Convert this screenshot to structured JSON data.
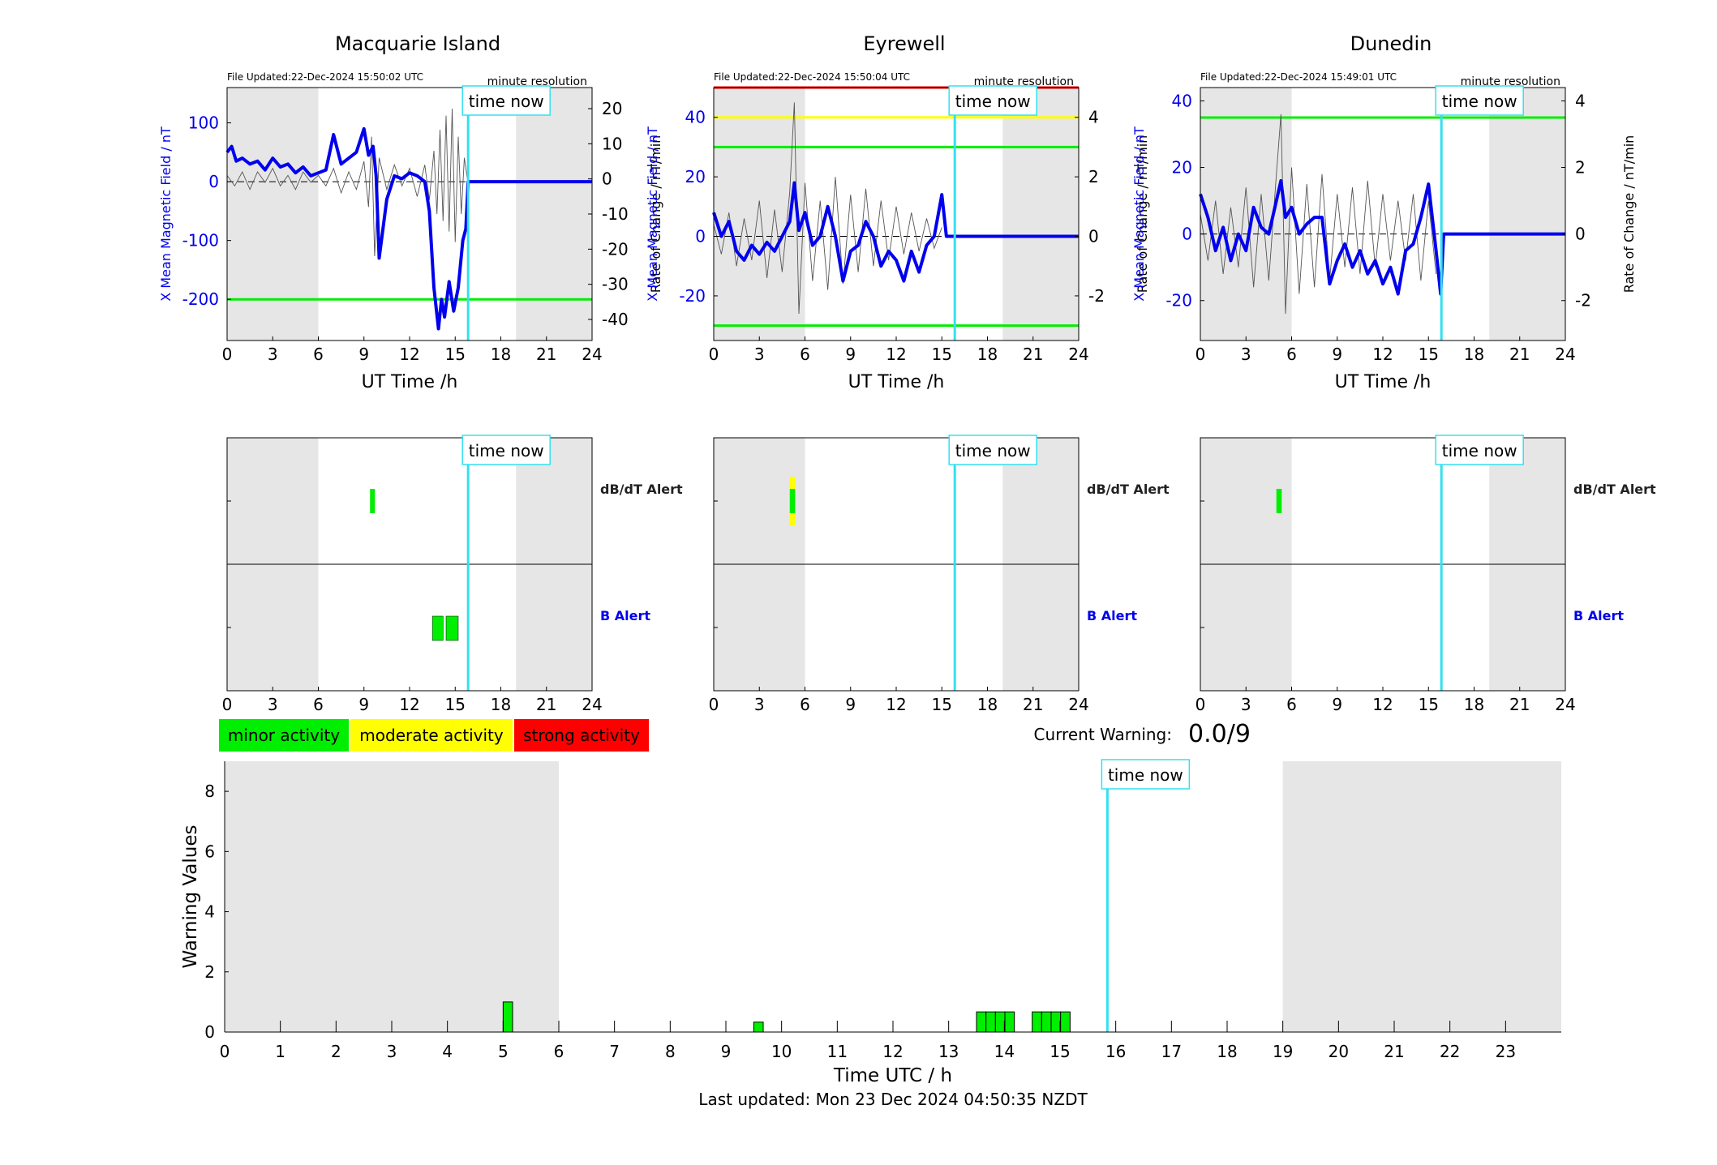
{
  "stations": [
    {
      "title": "Macquarie Island",
      "file_updated": "File Updated:22-Dec-2024 15:50:02 UTC",
      "resolution": "minute resolution",
      "left_ylabel": "X Mean Magnetic Field / nT",
      "right_ylabel": "Rate of Change / nT/min",
      "xlabel": "UT Time /h",
      "time_now_label": "time now"
    },
    {
      "title": "Eyrewell",
      "file_updated": "File Updated:22-Dec-2024 15:50:04 UTC",
      "resolution": "minute resolution",
      "left_ylabel": "X Mean Magnetic Field / nT",
      "right_ylabel": "Rate of Change / nT/min",
      "xlabel": "UT Time /h",
      "time_now_label": "time now"
    },
    {
      "title": "Dunedin",
      "file_updated": "File Updated:22-Dec-2024 15:49:01 UTC",
      "resolution": "minute resolution",
      "left_ylabel": "X Mean Magnetic Field / nT",
      "right_ylabel": "Rate of Change / nT/min",
      "xlabel": "UT Time /h",
      "time_now_label": "time now"
    }
  ],
  "alert_labels": {
    "dbdt": "dB/dT Alert",
    "b": "B Alert"
  },
  "legend": {
    "minor": "minor activity",
    "moderate": "moderate activity",
    "strong": "strong activity"
  },
  "current_warning": {
    "label": "Current Warning:",
    "value": "0.0/9"
  },
  "warning_chart": {
    "ylabel": "Warning Values",
    "xlabel": "Time UTC / h",
    "time_now_label": "time now"
  },
  "last_updated": "Last updated: Mon 23 Dec 2024 04:50:35 NZDT",
  "colors": {
    "field": "#0000ee",
    "rate": "#555555",
    "time_now": "#33e0f0",
    "minor": "#00ee00",
    "moderate": "#ffff00",
    "strong": "#ff0000",
    "shade": "#e6e6e6"
  },
  "chart_data": [
    {
      "type": "line",
      "title": "Macquarie Island",
      "xlabel": "UT Time /h",
      "xlim": [
        0,
        24
      ],
      "xticks": [
        0,
        3,
        6,
        9,
        12,
        15,
        18,
        21,
        24
      ],
      "ylabel": "X Mean Magnetic Field / nT",
      "ylim": [
        -270,
        160
      ],
      "yticks": [
        -200,
        -100,
        0,
        100
      ],
      "y2label": "Rate of Change / nT/min",
      "y2lim": [
        -46,
        26
      ],
      "y2ticks": [
        -40,
        -30,
        -20,
        -10,
        0,
        10,
        20
      ],
      "time_now": 15.85,
      "night_shading": [
        [
          0,
          6
        ],
        [
          19,
          24
        ]
      ],
      "thresholds": [
        {
          "value": -200,
          "color": "green"
        }
      ],
      "series": [
        {
          "name": "X Mean Magnetic Field / nT",
          "x": [
            0,
            0.3,
            0.6,
            1,
            1.5,
            2,
            2.5,
            3,
            3.5,
            4,
            4.5,
            5,
            5.5,
            6,
            6.5,
            7,
            7.5,
            8,
            8.5,
            9,
            9.3,
            9.6,
            9.8,
            10,
            10.5,
            11,
            11.5,
            12,
            12.5,
            13,
            13.3,
            13.6,
            13.9,
            14.1,
            14.3,
            14.6,
            14.9,
            15.2,
            15.5,
            15.7,
            15.85,
            16,
            24
          ],
          "y": [
            50,
            60,
            35,
            40,
            30,
            35,
            20,
            40,
            25,
            30,
            15,
            25,
            10,
            15,
            20,
            80,
            30,
            40,
            50,
            90,
            45,
            60,
            10,
            -130,
            -30,
            10,
            5,
            15,
            10,
            0,
            -50,
            -180,
            -250,
            -200,
            -230,
            -170,
            -220,
            -180,
            -100,
            -80,
            0,
            0,
            0
          ]
        },
        {
          "name": "Rate of Change / nT/min",
          "x": [
            0,
            0.5,
            1,
            1.5,
            2,
            2.5,
            3,
            3.5,
            4,
            4.5,
            5,
            5.5,
            6,
            6.5,
            7,
            7.5,
            8,
            8.5,
            9,
            9.3,
            9.5,
            9.7,
            10,
            10.5,
            11,
            11.5,
            12,
            12.5,
            13,
            13.3,
            13.6,
            13.8,
            14,
            14.2,
            14.4,
            14.6,
            14.8,
            15,
            15.2,
            15.4,
            15.6,
            15.8
          ],
          "y": [
            1,
            -2,
            2,
            -3,
            2,
            -1,
            3,
            -2,
            1,
            -3,
            2,
            -1,
            1,
            -2,
            3,
            -4,
            2,
            -3,
            5,
            -8,
            12,
            -22,
            6,
            -3,
            4,
            -2,
            3,
            -5,
            4,
            -6,
            8,
            -10,
            14,
            -12,
            18,
            -15,
            20,
            -18,
            12,
            -10,
            6,
            0
          ]
        }
      ]
    },
    {
      "type": "line",
      "title": "Eyrewell",
      "xlabel": "UT Time /h",
      "xlim": [
        0,
        24
      ],
      "xticks": [
        0,
        3,
        6,
        9,
        12,
        15,
        18,
        21,
        24
      ],
      "ylabel": "X Mean Magnetic Field / nT",
      "ylim": [
        -35,
        50
      ],
      "yticks": [
        -20,
        0,
        20,
        40
      ],
      "y2label": "Rate of Change / nT/min",
      "y2lim": [
        -3.5,
        5
      ],
      "y2ticks": [
        -2,
        0,
        2,
        4
      ],
      "time_now": 15.85,
      "night_shading": [
        [
          0,
          6
        ],
        [
          19,
          24
        ]
      ],
      "thresholds": [
        {
          "value": 50,
          "color": "red"
        },
        {
          "value": 40,
          "color": "yellow"
        },
        {
          "value": 30,
          "color": "green"
        },
        {
          "value": -30,
          "color": "green"
        }
      ],
      "series": [
        {
          "name": "X Mean Magnetic Field / nT",
          "x": [
            0,
            0.5,
            1,
            1.5,
            2,
            2.5,
            3,
            3.5,
            4,
            4.5,
            5,
            5.3,
            5.6,
            6,
            6.5,
            7,
            7.5,
            8,
            8.5,
            9,
            9.5,
            10,
            10.5,
            11,
            11.5,
            12,
            12.5,
            13,
            13.5,
            14,
            14.5,
            15,
            15.3,
            15.85,
            16,
            24
          ],
          "y": [
            8,
            0,
            5,
            -5,
            -8,
            -3,
            -6,
            -2,
            -5,
            0,
            5,
            18,
            2,
            8,
            -3,
            0,
            10,
            0,
            -15,
            -5,
            -3,
            5,
            0,
            -10,
            -5,
            -8,
            -15,
            -5,
            -12,
            -3,
            0,
            14,
            0,
            0,
            0,
            0
          ]
        },
        {
          "name": "Rate of Change / nT/min",
          "x": [
            0,
            0.5,
            1,
            1.5,
            2,
            2.5,
            3,
            3.5,
            4,
            4.5,
            5,
            5.3,
            5.6,
            6,
            6.5,
            7,
            7.5,
            8,
            8.5,
            9,
            9.5,
            10,
            10.5,
            11,
            11.5,
            12,
            12.5,
            13,
            13.5,
            14,
            14.5,
            15
          ],
          "y": [
            0.4,
            -0.6,
            0.8,
            -1.0,
            0.6,
            -0.8,
            1.2,
            -1.4,
            0.9,
            -1.2,
            1.5,
            4.5,
            -2.6,
            1.8,
            -1.5,
            1.2,
            -1.8,
            2.0,
            -1.6,
            1.4,
            -1.2,
            1.6,
            -1.0,
            1.2,
            -0.8,
            1.0,
            -0.6,
            0.8,
            -0.5,
            0.6,
            -0.4,
            0.3
          ]
        }
      ]
    },
    {
      "type": "line",
      "title": "Dunedin",
      "xlabel": "UT Time /h",
      "xlim": [
        0,
        24
      ],
      "xticks": [
        0,
        3,
        6,
        9,
        12,
        15,
        18,
        21,
        24
      ],
      "ylabel": "X Mean Magnetic Field / nT",
      "ylim": [
        -32,
        44
      ],
      "yticks": [
        -20,
        0,
        20,
        40
      ],
      "y2label": "Rate of Change / nT/min",
      "y2lim": [
        -3.2,
        4.4
      ],
      "y2ticks": [
        -2,
        0,
        2,
        4
      ],
      "time_now": 15.85,
      "night_shading": [
        [
          0,
          6
        ],
        [
          19,
          24
        ]
      ],
      "thresholds": [
        {
          "value": 35,
          "color": "green"
        }
      ],
      "series": [
        {
          "name": "X Mean Magnetic Field / nT",
          "x": [
            0,
            0.5,
            1,
            1.5,
            2,
            2.5,
            3,
            3.5,
            4,
            4.5,
            5,
            5.3,
            5.6,
            6,
            6.5,
            7,
            7.5,
            8,
            8.5,
            9,
            9.5,
            10,
            10.5,
            11,
            11.5,
            12,
            12.5,
            13,
            13.5,
            14,
            14.5,
            15,
            15.5,
            15.8,
            16,
            24
          ],
          "y": [
            12,
            5,
            -5,
            2,
            -8,
            0,
            -5,
            8,
            2,
            0,
            10,
            16,
            5,
            8,
            0,
            3,
            5,
            5,
            -15,
            -8,
            -3,
            -10,
            -5,
            -12,
            -8,
            -15,
            -10,
            -18,
            -5,
            -3,
            5,
            15,
            -5,
            -18,
            0,
            0
          ]
        },
        {
          "name": "Rate of Change / nT/min",
          "x": [
            0,
            0.5,
            1,
            1.5,
            2,
            2.5,
            3,
            3.5,
            4,
            4.5,
            5,
            5.3,
            5.6,
            6,
            6.5,
            7,
            7.5,
            8,
            8.5,
            9,
            9.5,
            10,
            10.5,
            11,
            11.5,
            12,
            12.5,
            13,
            13.5,
            14,
            14.5,
            15,
            15.5
          ],
          "y": [
            0.6,
            -0.8,
            1.0,
            -1.2,
            0.8,
            -1.0,
            1.4,
            -1.6,
            1.2,
            -1.4,
            1.8,
            3.6,
            -2.4,
            2.0,
            -1.8,
            1.5,
            -1.6,
            1.8,
            -1.4,
            1.2,
            -1.0,
            1.4,
            -1.2,
            1.6,
            -1.0,
            1.2,
            -0.8,
            1.0,
            -0.8,
            1.2,
            -1.4,
            1.0,
            -1.2
          ]
        }
      ]
    },
    {
      "type": "bar",
      "title": "Macquarie Island alerts",
      "xlim": [
        0,
        24
      ],
      "xticks": [
        0,
        3,
        6,
        9,
        12,
        15,
        18,
        21,
        24
      ],
      "time_now": 15.85,
      "night_shading": [
        [
          0,
          6
        ],
        [
          19,
          24
        ]
      ],
      "rows": [
        "dB/dT Alert",
        "B Alert"
      ],
      "events": [
        {
          "row": "dB/dT Alert",
          "start": 9.4,
          "end": 9.7,
          "level": "minor"
        },
        {
          "row": "B Alert",
          "start": 13.5,
          "end": 14.2,
          "level": "minor"
        },
        {
          "row": "B Alert",
          "start": 14.4,
          "end": 15.2,
          "level": "minor"
        }
      ]
    },
    {
      "type": "bar",
      "title": "Eyrewell alerts",
      "xlim": [
        0,
        24
      ],
      "xticks": [
        0,
        3,
        6,
        9,
        12,
        15,
        18,
        21,
        24
      ],
      "time_now": 15.85,
      "night_shading": [
        [
          0,
          6
        ],
        [
          19,
          24
        ]
      ],
      "rows": [
        "dB/dT Alert",
        "B Alert"
      ],
      "events": [
        {
          "row": "dB/dT Alert",
          "start": 5.0,
          "end": 5.35,
          "level": "moderate"
        },
        {
          "row": "dB/dT Alert",
          "start": 5.0,
          "end": 5.35,
          "level": "minor"
        }
      ]
    },
    {
      "type": "bar",
      "title": "Dunedin alerts",
      "xlim": [
        0,
        24
      ],
      "xticks": [
        0,
        3,
        6,
        9,
        12,
        15,
        18,
        21,
        24
      ],
      "time_now": 15.85,
      "night_shading": [
        [
          0,
          6
        ],
        [
          19,
          24
        ]
      ],
      "rows": [
        "dB/dT Alert",
        "B Alert"
      ],
      "events": [
        {
          "row": "dB/dT Alert",
          "start": 5.0,
          "end": 5.35,
          "level": "minor"
        }
      ]
    },
    {
      "type": "bar",
      "title": "",
      "xlabel": "Time UTC / h",
      "ylabel": "Warning Values",
      "xlim": [
        0,
        24
      ],
      "xticks": [
        0,
        1,
        2,
        3,
        4,
        5,
        6,
        7,
        8,
        9,
        10,
        11,
        12,
        13,
        14,
        15,
        16,
        17,
        18,
        19,
        20,
        21,
        22,
        23
      ],
      "ylim": [
        0,
        9
      ],
      "yticks": [
        0,
        2,
        4,
        6,
        8
      ],
      "time_now": 15.85,
      "night_shading": [
        [
          0,
          6
        ],
        [
          19,
          24
        ]
      ],
      "bars": [
        {
          "x": 5.0,
          "width": 0.17,
          "value": 1.0
        },
        {
          "x": 9.5,
          "width": 0.17,
          "value": 0.33
        },
        {
          "x": 13.5,
          "width": 0.17,
          "value": 0.67
        },
        {
          "x": 13.67,
          "width": 0.17,
          "value": 0.67
        },
        {
          "x": 13.84,
          "width": 0.17,
          "value": 0.67
        },
        {
          "x": 14.01,
          "width": 0.17,
          "value": 0.67
        },
        {
          "x": 14.5,
          "width": 0.17,
          "value": 0.67
        },
        {
          "x": 14.67,
          "width": 0.17,
          "value": 0.67
        },
        {
          "x": 14.84,
          "width": 0.17,
          "value": 0.67
        },
        {
          "x": 15.01,
          "width": 0.17,
          "value": 0.67
        }
      ]
    }
  ]
}
